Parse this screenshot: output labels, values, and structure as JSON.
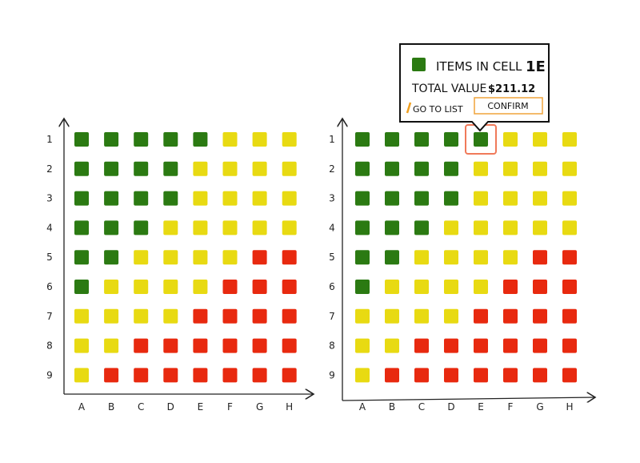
{
  "rows": [
    "1",
    "2",
    "3",
    "4",
    "5",
    "6",
    "7",
    "8",
    "9"
  ],
  "columns": [
    "A",
    "B",
    "C",
    "D",
    "E",
    "F",
    "G",
    "H"
  ],
  "colors": {
    "green": "#2b7a12",
    "yellow": "#e8da12",
    "red": "#e8290f",
    "highlight": "#f07a5a",
    "confirm_border": "#f0a43a",
    "go_to_list_mark": "#f0a020"
  },
  "grids": [
    {
      "name": "grid-left",
      "cells": [
        [
          "green",
          "green",
          "green",
          "green",
          "green",
          "yellow",
          "yellow",
          "yellow"
        ],
        [
          "green",
          "green",
          "green",
          "green",
          "yellow",
          "yellow",
          "yellow",
          "yellow"
        ],
        [
          "green",
          "green",
          "green",
          "green",
          "yellow",
          "yellow",
          "yellow",
          "yellow"
        ],
        [
          "green",
          "green",
          "green",
          "yellow",
          "yellow",
          "yellow",
          "yellow",
          "yellow"
        ],
        [
          "green",
          "green",
          "yellow",
          "yellow",
          "yellow",
          "yellow",
          "red",
          "red"
        ],
        [
          "green",
          "yellow",
          "yellow",
          "yellow",
          "yellow",
          "red",
          "red",
          "red"
        ],
        [
          "yellow",
          "yellow",
          "yellow",
          "yellow",
          "red",
          "red",
          "red",
          "red"
        ],
        [
          "yellow",
          "yellow",
          "red",
          "red",
          "red",
          "red",
          "red",
          "red"
        ],
        [
          "yellow",
          "red",
          "red",
          "red",
          "red",
          "red",
          "red",
          "red"
        ]
      ]
    },
    {
      "name": "grid-right",
      "selected_cell": "1E",
      "cells": [
        [
          "green",
          "green",
          "green",
          "green",
          "green",
          "yellow",
          "yellow",
          "yellow"
        ],
        [
          "green",
          "green",
          "green",
          "green",
          "yellow",
          "yellow",
          "yellow",
          "yellow"
        ],
        [
          "green",
          "green",
          "green",
          "green",
          "yellow",
          "yellow",
          "yellow",
          "yellow"
        ],
        [
          "green",
          "green",
          "green",
          "yellow",
          "yellow",
          "yellow",
          "yellow",
          "yellow"
        ],
        [
          "green",
          "green",
          "yellow",
          "yellow",
          "yellow",
          "yellow",
          "red",
          "red"
        ],
        [
          "green",
          "yellow",
          "yellow",
          "yellow",
          "yellow",
          "red",
          "red",
          "red"
        ],
        [
          "yellow",
          "yellow",
          "yellow",
          "yellow",
          "red",
          "red",
          "red",
          "red"
        ],
        [
          "yellow",
          "yellow",
          "red",
          "red",
          "red",
          "red",
          "red",
          "red"
        ],
        [
          "yellow",
          "red",
          "red",
          "red",
          "red",
          "red",
          "red",
          "red"
        ]
      ]
    }
  ],
  "tooltip": {
    "items_label": "ITEMS IN CELL",
    "cell_id": "1E",
    "total_label": "TOTAL VALUE",
    "total_value": "$211.12",
    "go_to_list": "GO TO LIST",
    "confirm": "CONFIRM"
  }
}
